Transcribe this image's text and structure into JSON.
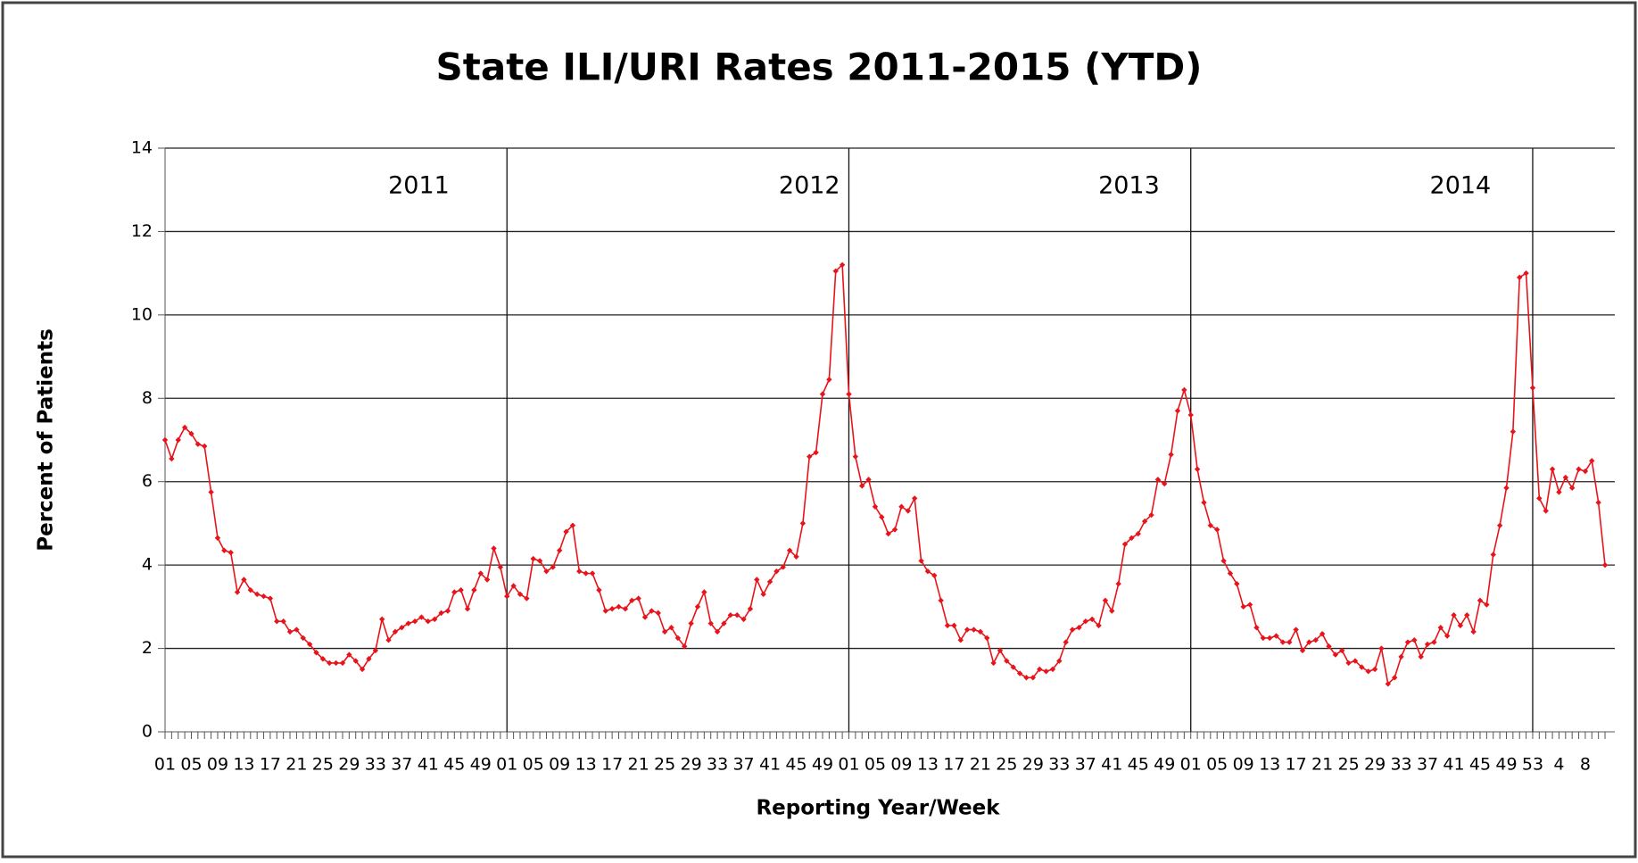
{
  "chart_data": {
    "type": "line",
    "title": "State ILI/URI Rates 2011-2015 (YTD)",
    "y_label": "Percent of Patients",
    "x_label": "Reporting Year/Week",
    "annotations": [
      "2011",
      "2012",
      "2013",
      "2014"
    ],
    "color": "#e8141b",
    "grid": true,
    "ylim": [
      0,
      14
    ],
    "yticks": [
      0,
      2,
      4,
      6,
      8,
      10,
      12,
      14
    ],
    "categories": [
      "01",
      null,
      null,
      null,
      "05",
      null,
      null,
      null,
      "09",
      null,
      null,
      null,
      "13",
      null,
      null,
      null,
      "17",
      null,
      null,
      null,
      "21",
      null,
      null,
      null,
      "25",
      null,
      null,
      null,
      "29",
      null,
      null,
      null,
      "33",
      null,
      null,
      null,
      "37",
      null,
      null,
      null,
      "41",
      null,
      null,
      null,
      "45",
      null,
      null,
      null,
      "49",
      null,
      null,
      null,
      "01",
      null,
      null,
      null,
      "05",
      null,
      null,
      null,
      "09",
      null,
      null,
      null,
      "13",
      null,
      null,
      null,
      "17",
      null,
      null,
      null,
      "21",
      null,
      null,
      null,
      "25",
      null,
      null,
      null,
      "29",
      null,
      null,
      null,
      "33",
      null,
      null,
      null,
      "37",
      null,
      null,
      null,
      "41",
      null,
      null,
      null,
      "45",
      null,
      null,
      null,
      "49",
      null,
      null,
      null,
      "01",
      null,
      null,
      null,
      "05",
      null,
      null,
      null,
      "09",
      null,
      null,
      null,
      "13",
      null,
      null,
      null,
      "17",
      null,
      null,
      null,
      "21",
      null,
      null,
      null,
      "25",
      null,
      null,
      null,
      "29",
      null,
      null,
      null,
      "33",
      null,
      null,
      null,
      "37",
      null,
      null,
      null,
      "41",
      null,
      null,
      null,
      "45",
      null,
      null,
      null,
      "49",
      null,
      null,
      null,
      "01",
      null,
      null,
      null,
      "05",
      null,
      null,
      null,
      "09",
      null,
      null,
      null,
      "13",
      null,
      null,
      null,
      "17",
      null,
      null,
      null,
      "21",
      null,
      null,
      null,
      "25",
      null,
      null,
      null,
      "29",
      null,
      null,
      null,
      "33",
      null,
      null,
      null,
      "37",
      null,
      null,
      null,
      "41",
      null,
      null,
      null,
      "45",
      null,
      null,
      null,
      "49",
      null,
      null,
      null,
      "53",
      null,
      null,
      null,
      "4",
      null,
      null,
      null,
      "8",
      null,
      null,
      null
    ],
    "values": [
      7.0,
      6.55,
      7.0,
      7.3,
      7.15,
      6.9,
      6.85,
      5.75,
      4.65,
      4.35,
      4.3,
      3.35,
      3.65,
      3.4,
      3.3,
      3.25,
      3.2,
      2.65,
      2.65,
      2.4,
      2.45,
      2.25,
      2.1,
      1.9,
      1.75,
      1.65,
      1.65,
      1.65,
      1.85,
      1.7,
      1.5,
      1.75,
      1.95,
      2.7,
      2.2,
      2.4,
      2.5,
      2.6,
      2.65,
      2.75,
      2.65,
      2.7,
      2.85,
      2.9,
      3.35,
      3.4,
      2.95,
      3.4,
      3.8,
      3.65,
      4.4,
      3.95,
      3.25,
      3.5,
      3.3,
      3.2,
      4.15,
      4.1,
      3.85,
      3.95,
      4.35,
      4.8,
      4.95,
      3.85,
      3.8,
      3.8,
      3.4,
      2.9,
      2.95,
      3.0,
      2.95,
      3.15,
      3.2,
      2.75,
      2.9,
      2.85,
      2.4,
      2.5,
      2.25,
      2.05,
      2.6,
      3.0,
      3.35,
      2.6,
      2.4,
      2.6,
      2.8,
      2.8,
      2.7,
      2.95,
      3.65,
      3.3,
      3.6,
      3.85,
      3.95,
      4.35,
      4.2,
      5.0,
      6.6,
      6.7,
      8.1,
      8.45,
      11.05,
      11.2,
      8.1,
      6.6,
      5.9,
      6.05,
      5.4,
      5.15,
      4.75,
      4.85,
      5.4,
      5.3,
      5.6,
      4.1,
      3.85,
      3.75,
      3.15,
      2.55,
      2.55,
      2.2,
      2.45,
      2.45,
      2.4,
      2.25,
      1.65,
      1.95,
      1.7,
      1.55,
      1.4,
      1.3,
      1.3,
      1.5,
      1.45,
      1.5,
      1.7,
      2.15,
      2.45,
      2.5,
      2.65,
      2.7,
      2.55,
      3.15,
      2.9,
      3.55,
      4.5,
      4.65,
      4.75,
      5.05,
      5.2,
      6.05,
      5.95,
      6.65,
      7.7,
      8.2,
      7.6,
      6.3,
      5.5,
      4.95,
      4.85,
      4.1,
      3.8,
      3.55,
      3.0,
      3.05,
      2.5,
      2.25,
      2.25,
      2.3,
      2.15,
      2.15,
      2.45,
      1.95,
      2.15,
      2.2,
      2.35,
      2.05,
      1.85,
      1.95,
      1.65,
      1.7,
      1.55,
      1.45,
      1.5,
      2.0,
      1.15,
      1.3,
      1.8,
      2.15,
      2.2,
      1.8,
      2.1,
      2.15,
      2.5,
      2.3,
      2.8,
      2.55,
      2.8,
      2.4,
      3.15,
      3.05,
      4.25,
      4.95,
      5.85,
      7.2,
      10.9,
      11.0,
      8.25,
      5.6,
      5.3,
      6.3,
      5.75,
      6.1,
      5.85,
      6.3,
      6.25,
      6.5,
      5.5,
      4.0
    ]
  }
}
